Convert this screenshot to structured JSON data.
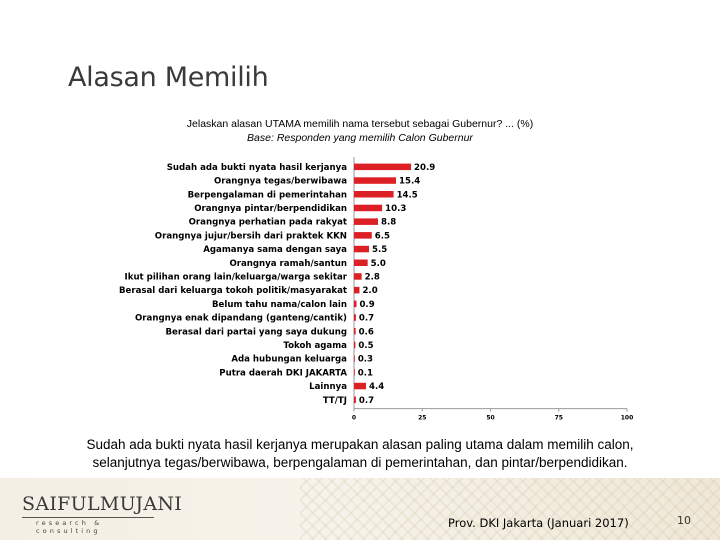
{
  "slide": {
    "title": "Alasan Memilih",
    "question": "Jelaskan alasan UTAMA memilih nama tersebut sebagai Gubernur? ... (%)",
    "base": "Base: Responden yang memilih Calon Gubernur",
    "summary_line1": "Sudah ada bukti nyata hasil kerjanya merupakan alasan paling utama dalam memilih calon,",
    "summary_line2": "selanjutnya tegas/berwibawa, berpengalaman di pemerintahan, dan pintar/berpendidikan.",
    "logo_main": "SAIFULMUJANI",
    "logo_sub": "research & consulting",
    "footer": "Prov. DKI Jakarta (Januari 2017)",
    "page_number": "10"
  },
  "colors": {
    "bar": "#dd1f26",
    "axis": "#999999",
    "text": "#000000"
  },
  "chart_data": {
    "type": "bar",
    "orientation": "horizontal",
    "title": "Jelaskan alasan UTAMA memilih nama tersebut sebagai Gubernur? ... (%)",
    "subtitle": "Base: Responden yang memilih Calon Gubernur",
    "categories": [
      "Sudah ada bukti nyata hasil kerjanya",
      "Orangnya tegas/berwibawa",
      "Berpengalaman di pemerintahan",
      "Orangnya pintar/berpendidikan",
      "Orangnya perhatian pada rakyat",
      "Orangnya jujur/bersih dari praktek KKN",
      "Agamanya sama dengan saya",
      "Orangnya ramah/santun",
      "Ikut pilihan orang lain/keluarga/warga sekitar",
      "Berasal dari keluarga tokoh politik/masyarakat",
      "Belum tahu nama/calon lain",
      "Orangnya enak dipandang (ganteng/cantik)",
      "Berasal dari partai yang saya dukung",
      "Tokoh agama",
      "Ada hubungan keluarga",
      "Putra daerah DKI JAKARTA",
      "Lainnya",
      "TT/TJ"
    ],
    "values": [
      20.9,
      15.4,
      14.5,
      10.3,
      8.8,
      6.5,
      5.5,
      5.0,
      2.8,
      2.0,
      0.9,
      0.7,
      0.6,
      0.5,
      0.3,
      0.1,
      4.4,
      0.7
    ],
    "value_labels": [
      "20.9",
      "15.4",
      "14.5",
      "10.3",
      "8.8",
      "6.5",
      "5.5",
      "5.0",
      "2.8",
      "2.0",
      "0.9",
      "0.7",
      "0.6",
      "0.5",
      "0.3",
      "0.1",
      "4.4",
      "0.7"
    ],
    "xlim": [
      0,
      100
    ],
    "xticks": [
      0,
      25,
      50,
      75,
      100
    ],
    "grid": false,
    "legend": "none"
  }
}
